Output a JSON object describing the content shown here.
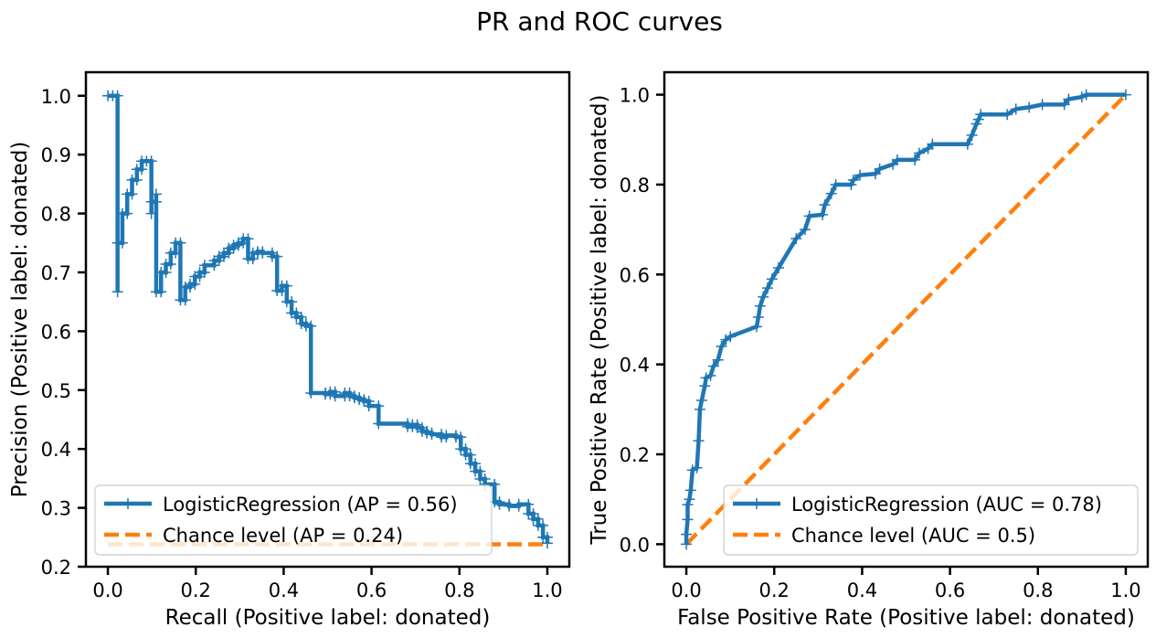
{
  "figure_title": "PR and ROC curves",
  "colors": {
    "series": "#1f77b4",
    "chance": "#ff7f0e",
    "axis": "#000000"
  },
  "chart_data": [
    {
      "type": "line",
      "name": "pr",
      "title": "",
      "xlabel": "Recall (Positive label: donated)",
      "ylabel": "Precision (Positive label: donated)",
      "xlim": [
        -0.05,
        1.05
      ],
      "ylim": [
        0.2,
        1.04
      ],
      "xticks": [
        0.0,
        0.2,
        0.4,
        0.6,
        0.8,
        1.0
      ],
      "xtick_labels": [
        "0.0",
        "0.2",
        "0.4",
        "0.6",
        "0.8",
        "1.0"
      ],
      "yticks": [
        0.2,
        0.3,
        0.4,
        0.5,
        0.6,
        0.7,
        0.8,
        0.9,
        1.0
      ],
      "ytick_labels": [
        "0.2",
        "0.3",
        "0.4",
        "0.5",
        "0.6",
        "0.7",
        "0.8",
        "0.9",
        "1.0"
      ],
      "legend_position": "lower-left",
      "grid": false,
      "series": [
        {
          "name": "LogisticRegression (AP = 0.56)",
          "color": "#1f77b4",
          "style": "step-marker",
          "points": [
            [
              0.0,
              1.0
            ],
            [
              0.011,
              1.0
            ],
            [
              0.022,
              1.0
            ],
            [
              0.022,
              0.667
            ],
            [
              0.022,
              0.75
            ],
            [
              0.033,
              0.75
            ],
            [
              0.033,
              0.8
            ],
            [
              0.044,
              0.8
            ],
            [
              0.044,
              0.833
            ],
            [
              0.055,
              0.833
            ],
            [
              0.055,
              0.857
            ],
            [
              0.066,
              0.857
            ],
            [
              0.066,
              0.875
            ],
            [
              0.077,
              0.875
            ],
            [
              0.077,
              0.889
            ],
            [
              0.088,
              0.889
            ],
            [
              0.099,
              0.889
            ],
            [
              0.099,
              0.8
            ],
            [
              0.099,
              0.82
            ],
            [
              0.11,
              0.82
            ],
            [
              0.11,
              0.833
            ],
            [
              0.11,
              0.667
            ],
            [
              0.121,
              0.667
            ],
            [
              0.121,
              0.7
            ],
            [
              0.132,
              0.7
            ],
            [
              0.132,
              0.714
            ],
            [
              0.143,
              0.714
            ],
            [
              0.143,
              0.733
            ],
            [
              0.154,
              0.733
            ],
            [
              0.154,
              0.75
            ],
            [
              0.165,
              0.75
            ],
            [
              0.165,
              0.653
            ],
            [
              0.176,
              0.653
            ],
            [
              0.176,
              0.675
            ],
            [
              0.187,
              0.675
            ],
            [
              0.187,
              0.68
            ],
            [
              0.198,
              0.68
            ],
            [
              0.198,
              0.693
            ],
            [
              0.209,
              0.693
            ],
            [
              0.209,
              0.7
            ],
            [
              0.22,
              0.7
            ],
            [
              0.22,
              0.712
            ],
            [
              0.242,
              0.712
            ],
            [
              0.242,
              0.72
            ],
            [
              0.253,
              0.72
            ],
            [
              0.253,
              0.727
            ],
            [
              0.264,
              0.727
            ],
            [
              0.264,
              0.733
            ],
            [
              0.275,
              0.733
            ],
            [
              0.275,
              0.741
            ],
            [
              0.286,
              0.741
            ],
            [
              0.286,
              0.746
            ],
            [
              0.297,
              0.746
            ],
            [
              0.297,
              0.75
            ],
            [
              0.308,
              0.75
            ],
            [
              0.308,
              0.757
            ],
            [
              0.319,
              0.757
            ],
            [
              0.319,
              0.723
            ],
            [
              0.33,
              0.723
            ],
            [
              0.33,
              0.733
            ],
            [
              0.341,
              0.733
            ],
            [
              0.341,
              0.735
            ],
            [
              0.352,
              0.735
            ],
            [
              0.352,
              0.733
            ],
            [
              0.374,
              0.733
            ],
            [
              0.374,
              0.727
            ],
            [
              0.385,
              0.727
            ],
            [
              0.385,
              0.669
            ],
            [
              0.396,
              0.669
            ],
            [
              0.396,
              0.677
            ],
            [
              0.407,
              0.677
            ],
            [
              0.407,
              0.65
            ],
            [
              0.418,
              0.65
            ],
            [
              0.418,
              0.631
            ],
            [
              0.429,
              0.631
            ],
            [
              0.429,
              0.624
            ],
            [
              0.44,
              0.624
            ],
            [
              0.44,
              0.613
            ],
            [
              0.451,
              0.613
            ],
            [
              0.451,
              0.609
            ],
            [
              0.462,
              0.609
            ],
            [
              0.462,
              0.495
            ],
            [
              0.495,
              0.495
            ],
            [
              0.495,
              0.493
            ],
            [
              0.506,
              0.493
            ],
            [
              0.506,
              0.497
            ],
            [
              0.517,
              0.497
            ],
            [
              0.517,
              0.49
            ],
            [
              0.539,
              0.49
            ],
            [
              0.539,
              0.495
            ],
            [
              0.55,
              0.495
            ],
            [
              0.55,
              0.49
            ],
            [
              0.561,
              0.49
            ],
            [
              0.561,
              0.487
            ],
            [
              0.572,
              0.487
            ],
            [
              0.572,
              0.484
            ],
            [
              0.583,
              0.484
            ],
            [
              0.583,
              0.481
            ],
            [
              0.594,
              0.481
            ],
            [
              0.594,
              0.473
            ],
            [
              0.616,
              0.473
            ],
            [
              0.616,
              0.443
            ],
            [
              0.682,
              0.443
            ],
            [
              0.682,
              0.438
            ],
            [
              0.693,
              0.438
            ],
            [
              0.693,
              0.441
            ],
            [
              0.704,
              0.441
            ],
            [
              0.704,
              0.436
            ],
            [
              0.715,
              0.436
            ],
            [
              0.715,
              0.43
            ],
            [
              0.726,
              0.43
            ],
            [
              0.726,
              0.427
            ],
            [
              0.737,
              0.427
            ],
            [
              0.737,
              0.425
            ],
            [
              0.759,
              0.425
            ],
            [
              0.759,
              0.42
            ],
            [
              0.77,
              0.42
            ],
            [
              0.77,
              0.423
            ],
            [
              0.792,
              0.423
            ],
            [
              0.792,
              0.42
            ],
            [
              0.803,
              0.42
            ],
            [
              0.803,
              0.4
            ],
            [
              0.814,
              0.4
            ],
            [
              0.814,
              0.39
            ],
            [
              0.825,
              0.39
            ],
            [
              0.825,
              0.375
            ],
            [
              0.836,
              0.375
            ],
            [
              0.836,
              0.362
            ],
            [
              0.847,
              0.362
            ],
            [
              0.847,
              0.349
            ],
            [
              0.858,
              0.349
            ],
            [
              0.858,
              0.34
            ],
            [
              0.88,
              0.34
            ],
            [
              0.88,
              0.31
            ],
            [
              0.891,
              0.31
            ],
            [
              0.891,
              0.306
            ],
            [
              0.913,
              0.306
            ],
            [
              0.913,
              0.303
            ],
            [
              0.935,
              0.303
            ],
            [
              0.935,
              0.306
            ],
            [
              0.957,
              0.306
            ],
            [
              0.957,
              0.29
            ],
            [
              0.968,
              0.29
            ],
            [
              0.968,
              0.281
            ],
            [
              0.979,
              0.281
            ],
            [
              0.979,
              0.27
            ],
            [
              0.99,
              0.27
            ],
            [
              0.99,
              0.25
            ],
            [
              1.0,
              0.25
            ],
            [
              1.0,
              0.24
            ]
          ]
        },
        {
          "name": "Chance level (AP = 0.24)",
          "color": "#ff7f0e",
          "style": "dashed",
          "points": [
            [
              0.0,
              0.238
            ],
            [
              1.0,
              0.238
            ]
          ]
        }
      ]
    },
    {
      "type": "line",
      "name": "roc",
      "title": "",
      "xlabel": "False Positive Rate (Positive label: donated)",
      "ylabel": "True Positive Rate (Positive label: donated)",
      "xlim": [
        -0.05,
        1.05
      ],
      "ylim": [
        -0.05,
        1.05
      ],
      "xticks": [
        0.0,
        0.2,
        0.4,
        0.6,
        0.8,
        1.0
      ],
      "xtick_labels": [
        "0.0",
        "0.2",
        "0.4",
        "0.6",
        "0.8",
        "1.0"
      ],
      "yticks": [
        0.0,
        0.2,
        0.4,
        0.6,
        0.8,
        1.0
      ],
      "ytick_labels": [
        "0.0",
        "0.2",
        "0.4",
        "0.6",
        "0.8",
        "1.0"
      ],
      "legend_position": "lower-right",
      "grid": false,
      "series": [
        {
          "name": "LogisticRegression (AUC = 0.78)",
          "color": "#1f77b4",
          "style": "line-marker",
          "points": [
            [
              0.0,
              0.0
            ],
            [
              0.0,
              0.022
            ],
            [
              0.003,
              0.055
            ],
            [
              0.003,
              0.088
            ],
            [
              0.007,
              0.1
            ],
            [
              0.01,
              0.12
            ],
            [
              0.014,
              0.165
            ],
            [
              0.024,
              0.17
            ],
            [
              0.028,
              0.23
            ],
            [
              0.031,
              0.3
            ],
            [
              0.035,
              0.32
            ],
            [
              0.042,
              0.352
            ],
            [
              0.045,
              0.37
            ],
            [
              0.055,
              0.375
            ],
            [
              0.062,
              0.396
            ],
            [
              0.072,
              0.41
            ],
            [
              0.08,
              0.44
            ],
            [
              0.09,
              0.455
            ],
            [
              0.1,
              0.462
            ],
            [
              0.16,
              0.484
            ],
            [
              0.164,
              0.505
            ],
            [
              0.168,
              0.53
            ],
            [
              0.175,
              0.55
            ],
            [
              0.185,
              0.57
            ],
            [
              0.195,
              0.59
            ],
            [
              0.21,
              0.615
            ],
            [
              0.25,
              0.68
            ],
            [
              0.27,
              0.7
            ],
            [
              0.28,
              0.73
            ],
            [
              0.31,
              0.733
            ],
            [
              0.315,
              0.755
            ],
            [
              0.33,
              0.78
            ],
            [
              0.34,
              0.8
            ],
            [
              0.375,
              0.8
            ],
            [
              0.38,
              0.81
            ],
            [
              0.395,
              0.821
            ],
            [
              0.43,
              0.824
            ],
            [
              0.44,
              0.835
            ],
            [
              0.47,
              0.845
            ],
            [
              0.48,
              0.855
            ],
            [
              0.52,
              0.855
            ],
            [
              0.53,
              0.87
            ],
            [
              0.55,
              0.88
            ],
            [
              0.56,
              0.89
            ],
            [
              0.64,
              0.89
            ],
            [
              0.65,
              0.91
            ],
            [
              0.66,
              0.935
            ],
            [
              0.665,
              0.945
            ],
            [
              0.67,
              0.956
            ],
            [
              0.73,
              0.956
            ],
            [
              0.75,
              0.968
            ],
            [
              0.78,
              0.972
            ],
            [
              0.81,
              0.978
            ],
            [
              0.86,
              0.978
            ],
            [
              0.87,
              0.99
            ],
            [
              0.9,
              0.995
            ],
            [
              0.91,
              1.0
            ],
            [
              1.0,
              1.0
            ]
          ]
        },
        {
          "name": "Chance level (AUC = 0.5)",
          "color": "#ff7f0e",
          "style": "dashed",
          "points": [
            [
              0.0,
              0.0
            ],
            [
              1.0,
              1.0
            ]
          ]
        }
      ]
    }
  ]
}
